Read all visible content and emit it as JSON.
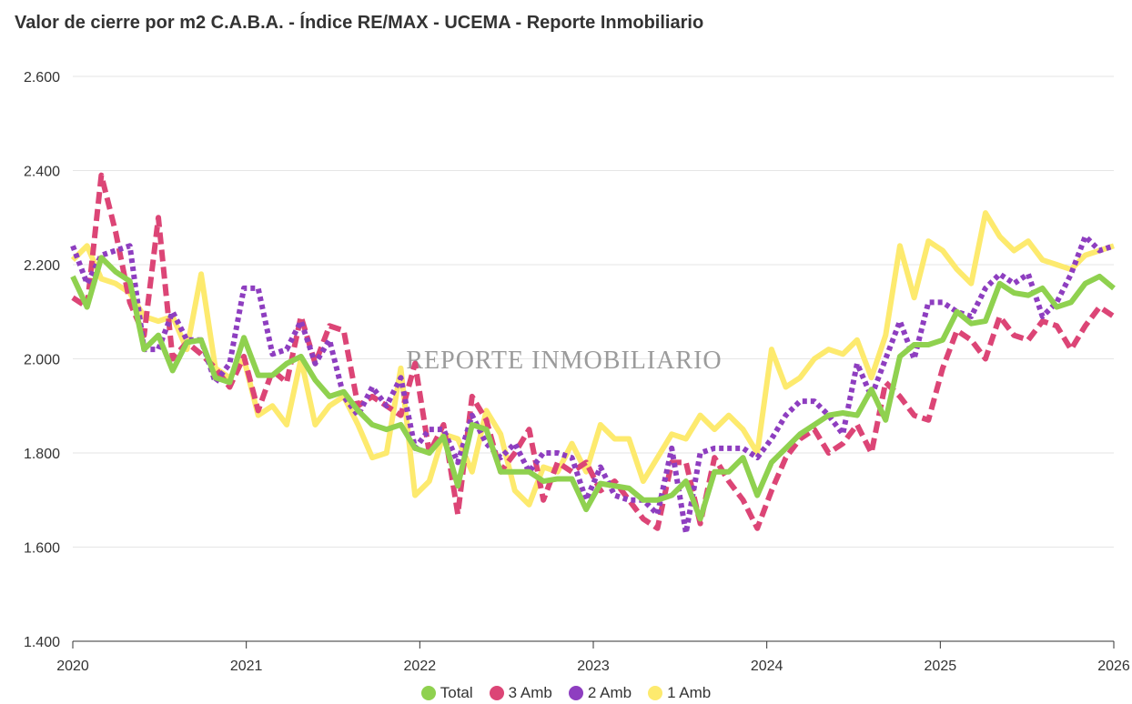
{
  "chart_data": {
    "type": "line",
    "title": "Valor de cierre por m2 C.A.B.A. - Índice RE/MAX - UCEMA - Reporte Inmobiliario",
    "watermark": "REPORTE INMOBILIARIO",
    "xlabel": "",
    "ylabel": "",
    "xlim": [
      2020,
      2026
    ],
    "ylim": [
      1400,
      2600
    ],
    "grid": true,
    "legend_position": "bottom-center",
    "y_ticks": [
      1400,
      1600,
      1800,
      2000,
      2200,
      2400,
      2600
    ],
    "y_tick_labels": [
      "1.400",
      "1.600",
      "1.800",
      "2.000",
      "2.200",
      "2.400",
      "2.600"
    ],
    "x_ticks": [
      2020,
      2021,
      2022,
      2023,
      2024,
      2025,
      2026
    ],
    "x_tick_labels": [
      "2020",
      "2021",
      "2022",
      "2023",
      "2024",
      "2025",
      "2026"
    ],
    "series": [
      {
        "name": "Total",
        "color": "#8fd14f",
        "style": "solid",
        "values": [
          2175,
          2110,
          2215,
          2185,
          2165,
          2020,
          2050,
          1975,
          2035,
          2040,
          1960,
          1950,
          2045,
          1965,
          1965,
          1990,
          2005,
          1955,
          1920,
          1930,
          1890,
          1860,
          1850,
          1860,
          1810,
          1800,
          1835,
          1730,
          1860,
          1850,
          1760,
          1760,
          1760,
          1740,
          1745,
          1745,
          1680,
          1735,
          1730,
          1725,
          1700,
          1700,
          1710,
          1740,
          1660,
          1760,
          1760,
          1790,
          1710,
          1780,
          1810,
          1840,
          1860,
          1880,
          1885,
          1880,
          1935,
          1870,
          2005,
          2030,
          2030,
          2040,
          2100,
          2075,
          2080,
          2160,
          2140,
          2135,
          2150,
          2110,
          2120,
          2160,
          2175,
          2150
        ]
      },
      {
        "name": "3 Amb",
        "color": "#dc4576",
        "style": "dashed",
        "values": [
          2130,
          2110,
          2390,
          2270,
          2120,
          2050,
          2300,
          2000,
          2035,
          2010,
          1980,
          1940,
          2005,
          1890,
          1975,
          1950,
          2090,
          1990,
          2070,
          2060,
          1900,
          1920,
          1900,
          1880,
          1990,
          1800,
          1860,
          1670,
          1920,
          1870,
          1760,
          1800,
          1850,
          1700,
          1780,
          1760,
          1780,
          1720,
          1740,
          1700,
          1660,
          1640,
          1780,
          1780,
          1650,
          1790,
          1740,
          1700,
          1640,
          1720,
          1790,
          1830,
          1850,
          1800,
          1820,
          1860,
          1800,
          1950,
          1920,
          1880,
          1870,
          1980,
          2060,
          2040,
          2000,
          2090,
          2050,
          2040,
          2080,
          2070,
          2020,
          2070,
          2110,
          2090
        ]
      },
      {
        "name": "2 Amb",
        "color": "#8e3ec0",
        "style": "dotted",
        "values": [
          2240,
          2160,
          2220,
          2230,
          2240,
          2020,
          2020,
          2100,
          2040,
          2040,
          1950,
          1990,
          2150,
          2150,
          2010,
          2020,
          2080,
          1990,
          2040,
          1920,
          1880,
          1940,
          1900,
          1960,
          1810,
          1850,
          1850,
          1780,
          1880,
          1820,
          1790,
          1820,
          1760,
          1800,
          1800,
          1790,
          1700,
          1770,
          1710,
          1700,
          1700,
          1670,
          1810,
          1630,
          1800,
          1810,
          1810,
          1810,
          1790,
          1830,
          1880,
          1910,
          1910,
          1880,
          1840,
          1990,
          1920,
          2000,
          2080,
          2000,
          2120,
          2120,
          2100,
          2090,
          2150,
          2180,
          2160,
          2180,
          2090,
          2120,
          2180,
          2260,
          2230,
          2240
        ]
      },
      {
        "name": "1 Amb",
        "color": "#fdea6e",
        "style": "solid",
        "values": [
          2210,
          2240,
          2170,
          2160,
          2140,
          2090,
          2080,
          2090,
          2020,
          2180,
          1980,
          1960,
          2000,
          1880,
          1900,
          1860,
          2000,
          1860,
          1900,
          1920,
          1860,
          1790,
          1800,
          1980,
          1710,
          1740,
          1840,
          1830,
          1760,
          1890,
          1840,
          1720,
          1690,
          1770,
          1760,
          1820,
          1760,
          1860,
          1830,
          1830,
          1740,
          1790,
          1840,
          1830,
          1880,
          1850,
          1880,
          1850,
          1800,
          2020,
          1940,
          1960,
          2000,
          2020,
          2010,
          2040,
          1960,
          2050,
          2240,
          2130,
          2250,
          2230,
          2190,
          2160,
          2310,
          2260,
          2230,
          2250,
          2210,
          2200,
          2190,
          2220,
          2230,
          2240
        ]
      }
    ]
  }
}
